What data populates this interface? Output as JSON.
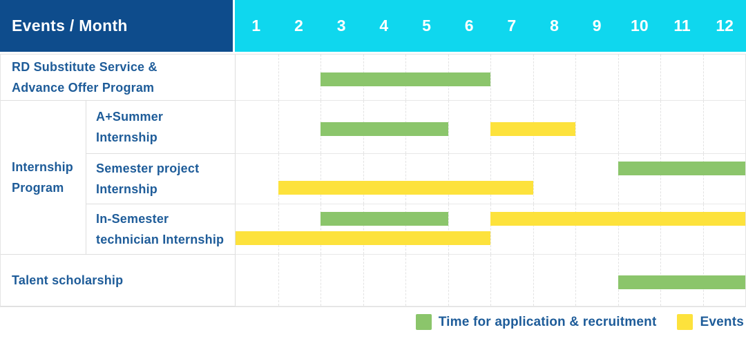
{
  "header": {
    "title": "Events / Month",
    "months": [
      "1",
      "2",
      "3",
      "4",
      "5",
      "6",
      "7",
      "8",
      "9",
      "10",
      "11",
      "12"
    ]
  },
  "colors": {
    "navy": "#0E4C8C",
    "cyan": "#0FD7EE",
    "green": "#8BC56B",
    "yellow": "#FDE23C",
    "label_blue": "#1E5C99"
  },
  "group_label": {
    "lines": [
      "Internship",
      "Program"
    ]
  },
  "legend": {
    "items": [
      {
        "color_key": "green",
        "label": "Time for application & recruitment"
      },
      {
        "color_key": "yellow",
        "label": "Events"
      }
    ]
  },
  "chart_data": {
    "type": "gantt",
    "title": "Events / Month",
    "x_axis": {
      "unit": "month",
      "ticks": [
        1,
        2,
        3,
        4,
        5,
        6,
        7,
        8,
        9,
        10,
        11,
        12
      ],
      "range": [
        1,
        12
      ]
    },
    "series_meaning": {
      "green": "Time for application & recruitment",
      "yellow": "Events"
    },
    "rows": [
      {
        "id": "rd-substitute-service",
        "group": null,
        "label": "RD Substitute Service & Advance Offer Program",
        "label_lines": [
          "RD Substitute Service &",
          "Advance Offer Program"
        ],
        "bars": [
          {
            "series": "application-recruitment",
            "color_key": "green",
            "start_month": 3,
            "end_month": 6,
            "lane": "middle"
          }
        ]
      },
      {
        "id": "a-plus-summer-internship",
        "group": "Internship Program",
        "label": "A+Summer Internship",
        "label_lines": [
          "A+Summer",
          "Internship"
        ],
        "bars": [
          {
            "series": "application-recruitment",
            "color_key": "green",
            "start_month": 3,
            "end_month": 5,
            "lane": "middle"
          },
          {
            "series": "events",
            "color_key": "yellow",
            "start_month": 7,
            "end_month": 8,
            "lane": "middle"
          }
        ]
      },
      {
        "id": "semester-project-internship",
        "group": "Internship Program",
        "label": "Semester project Internship",
        "label_lines": [
          "Semester project",
          "Internship"
        ],
        "bars": [
          {
            "series": "application-recruitment",
            "color_key": "green",
            "start_month": 10,
            "end_month": 12,
            "lane": "top"
          },
          {
            "series": "events",
            "color_key": "yellow",
            "start_month": 2,
            "end_month": 7,
            "lane": "bottom"
          }
        ]
      },
      {
        "id": "in-semester-technician-internship",
        "group": "Internship Program",
        "label": "In-Semester technician Internship",
        "label_lines": [
          "In-Semester",
          "technician Internship"
        ],
        "bars": [
          {
            "series": "application-recruitment",
            "color_key": "green",
            "start_month": 3,
            "end_month": 5,
            "lane": "top"
          },
          {
            "series": "events",
            "color_key": "yellow",
            "start_month": 7,
            "end_month": 12,
            "lane": "top"
          },
          {
            "series": "events",
            "color_key": "yellow",
            "start_month": 1,
            "end_month": 6,
            "lane": "bottom"
          }
        ]
      },
      {
        "id": "talent-scholarship",
        "group": null,
        "label": "Talent scholarship",
        "label_lines": [
          "Talent scholarship"
        ],
        "bars": [
          {
            "series": "application-recruitment",
            "color_key": "green",
            "start_month": 10,
            "end_month": 12,
            "lane": "middle"
          }
        ]
      }
    ]
  }
}
